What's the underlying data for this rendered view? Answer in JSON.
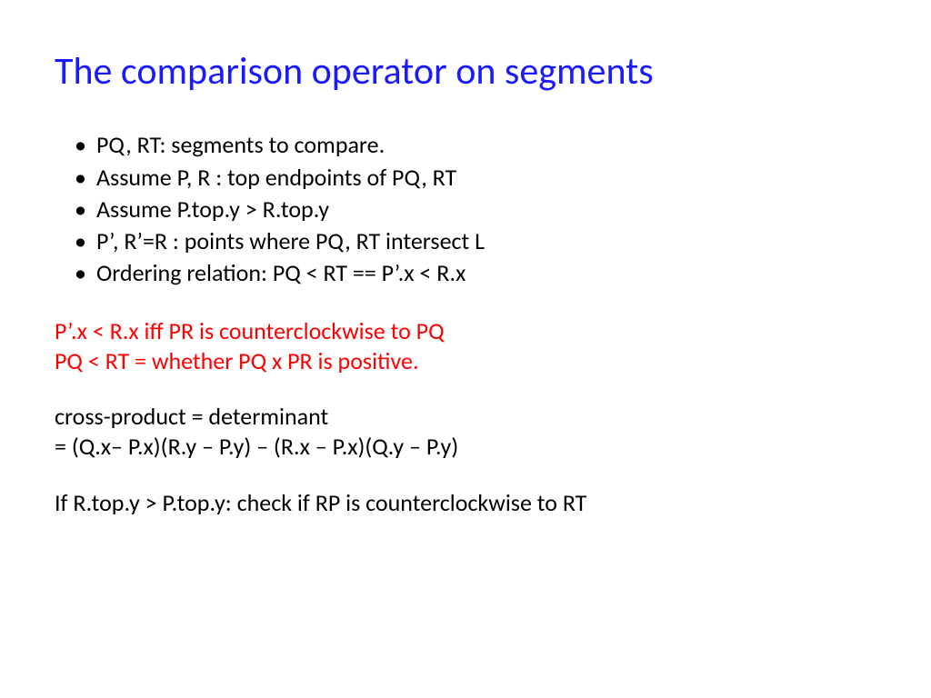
{
  "title": {
    "text": "The comparison operator on segments",
    "color": "#1a1aff"
  },
  "bullets": [
    "PQ, RT: segments to compare.",
    "Assume P, R : top endpoints of PQ, RT",
    "Assume P.top.y > R.top.y",
    "P’, R’=R : points where PQ, RT intersect L",
    "Ordering relation: PQ < RT ==  P’.x < R.x"
  ],
  "red_lines": [
    "P’.x < R.x  iff PR is counterclockwise to PQ",
    "PQ < RT  =  whether PQ x PR is positive."
  ],
  "red_color": "#ff0000",
  "black_lines_1": [
    "cross-product = determinant",
    "= (Q.x– P.x)(R.y – P.y) – (R.x – P.x)(Q.y – P.y)"
  ],
  "black_lines_2": [
    "If R.top.y > P.top.y: check if RP is counterclockwise to RT"
  ],
  "body_color": "#000000",
  "body_fontsize": 26,
  "title_fontsize": 42,
  "background_color": "#ffffff"
}
